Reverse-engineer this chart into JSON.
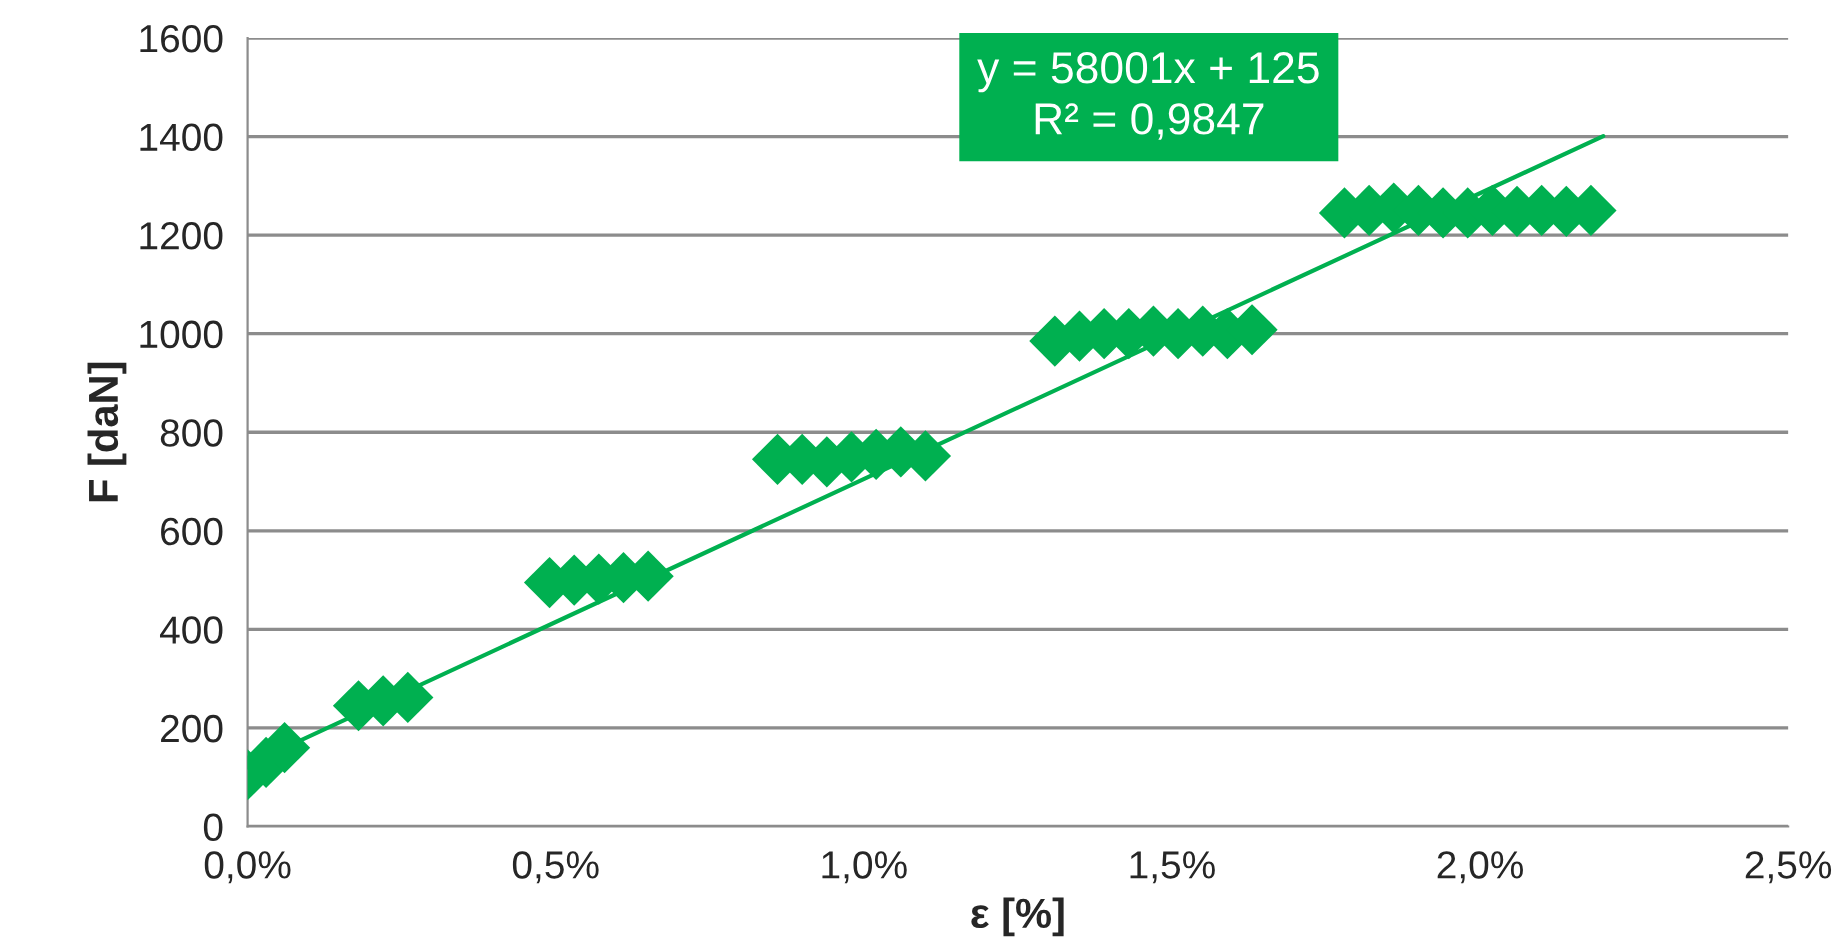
{
  "chart_data": {
    "type": "scatter",
    "xlabel": "ε [%]",
    "ylabel": "F [daN]",
    "series": [
      {
        "color": "#00b050",
        "marker": "diamond",
        "x": [
          0.0,
          0.0003,
          0.0006,
          0.0018,
          0.0022,
          0.0026,
          0.0049,
          0.0053,
          0.0057,
          0.0061,
          0.0065,
          0.0086,
          0.009,
          0.0094,
          0.0098,
          0.0102,
          0.0106,
          0.011,
          0.0131,
          0.0135,
          0.0139,
          0.0143,
          0.0147,
          0.0151,
          0.0155,
          0.0159,
          0.0163,
          0.0178,
          0.0182,
          0.0186,
          0.019,
          0.0194,
          0.0198,
          0.0202,
          0.0206,
          0.021,
          0.0214,
          0.0218
        ],
        "values": [
          105,
          130,
          160,
          245,
          255,
          262,
          495,
          500,
          502,
          505,
          508,
          745,
          745,
          740,
          750,
          755,
          760,
          752,
          985,
          995,
          1000,
          1000,
          1005,
          1000,
          1005,
          1000,
          1008,
          1245,
          1250,
          1255,
          1250,
          1245,
          1245,
          1250,
          1248,
          1250,
          1248,
          1250
        ]
      },
      {
        "type": "line",
        "color": "#00b050",
        "marker": "none",
        "line_style": "solid",
        "x": [
          0.0,
          0.022
        ],
        "values": [
          125,
          1401
        ]
      }
    ],
    "xlim": [
      0,
      0.025
    ],
    "xticks": [
      {
        "value": 0,
        "label": "0,0%"
      },
      {
        "value": 0.005,
        "label": "0,5%"
      },
      {
        "value": 0.01,
        "label": "1,0%"
      },
      {
        "value": 0.015,
        "label": "1,5%"
      },
      {
        "value": 0.02,
        "label": "2,0%"
      },
      {
        "value": 0.025,
        "label": "2,5%"
      }
    ],
    "ylim": [
      0,
      1600
    ],
    "yticks": [
      0,
      200,
      400,
      600,
      800,
      1000,
      1200,
      1400,
      1600
    ],
    "grid": "y",
    "annotations": [
      "y = 58001x + 125\nR² = 0,9847"
    ]
  }
}
